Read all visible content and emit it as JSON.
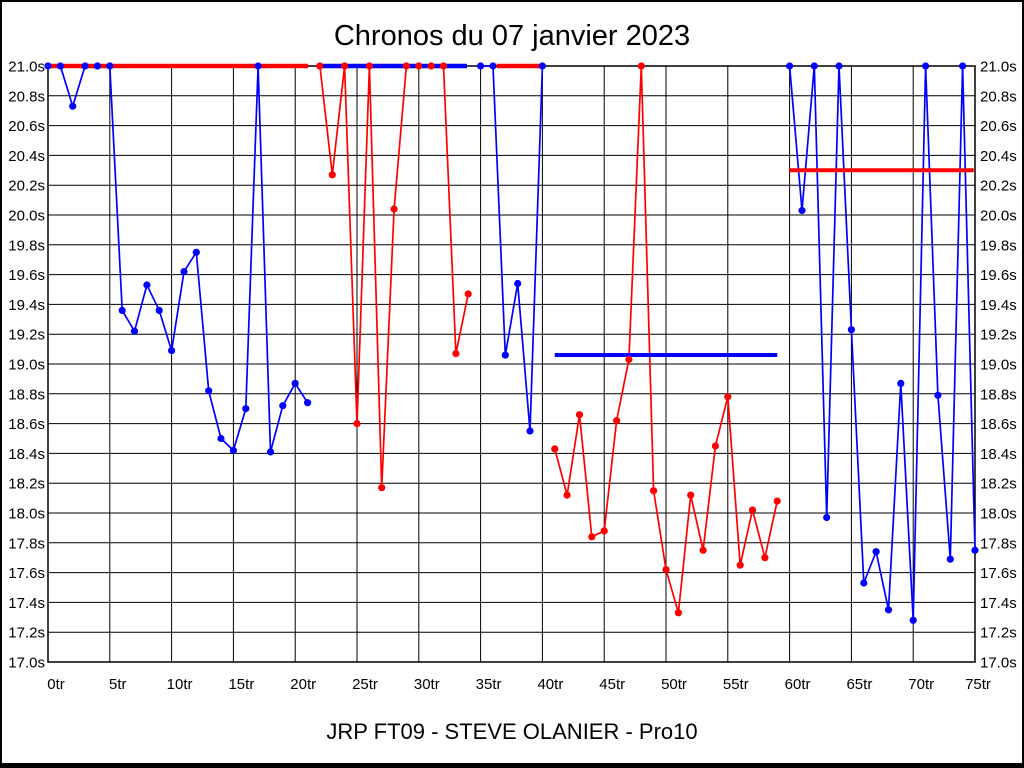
{
  "chart_data": {
    "type": "line",
    "title": "Chronos du 07 janvier 2023",
    "footer": "JRP FT09 - STEVE OLANIER - Pro10",
    "x_unit": "tr",
    "y_unit": "s",
    "xlim": [
      0,
      75
    ],
    "ylim": [
      17.0,
      21.0
    ],
    "grid": true,
    "x_ticks": [
      {
        "v": 0,
        "label": "0tr"
      },
      {
        "v": 5,
        "label": "5tr"
      },
      {
        "v": 10,
        "label": "10tr"
      },
      {
        "v": 15,
        "label": "15tr"
      },
      {
        "v": 20,
        "label": "20tr"
      },
      {
        "v": 25,
        "label": "25tr"
      },
      {
        "v": 30,
        "label": "30tr"
      },
      {
        "v": 35,
        "label": "35tr"
      },
      {
        "v": 40,
        "label": "40tr"
      },
      {
        "v": 45,
        "label": "45tr"
      },
      {
        "v": 50,
        "label": "50tr"
      },
      {
        "v": 55,
        "label": "55tr"
      },
      {
        "v": 60,
        "label": "60tr"
      },
      {
        "v": 65,
        "label": "65tr"
      },
      {
        "v": 70,
        "label": "70tr"
      },
      {
        "v": 75,
        "label": "75tr"
      }
    ],
    "y_ticks": [
      {
        "v": 21.0,
        "label": "21.0s"
      },
      {
        "v": 20.8,
        "label": "20.8s"
      },
      {
        "v": 20.6,
        "label": "20.6s"
      },
      {
        "v": 20.4,
        "label": "20.4s"
      },
      {
        "v": 20.2,
        "label": "20.2s"
      },
      {
        "v": 20.0,
        "label": "20.0s"
      },
      {
        "v": 19.8,
        "label": "19.8s"
      },
      {
        "v": 19.6,
        "label": "19.6s"
      },
      {
        "v": 19.4,
        "label": "19.4s"
      },
      {
        "v": 19.2,
        "label": "19.2s"
      },
      {
        "v": 19.0,
        "label": "19.0s"
      },
      {
        "v": 18.8,
        "label": "18.8s"
      },
      {
        "v": 18.6,
        "label": "18.6s"
      },
      {
        "v": 18.4,
        "label": "18.4s"
      },
      {
        "v": 18.2,
        "label": "18.2s"
      },
      {
        "v": 18.0,
        "label": "18.0s"
      },
      {
        "v": 17.8,
        "label": "17.8s"
      },
      {
        "v": 17.6,
        "label": "17.6s"
      },
      {
        "v": 17.4,
        "label": "17.4s"
      },
      {
        "v": 17.2,
        "label": "17.2s"
      },
      {
        "v": 17.0,
        "label": "17.0s"
      }
    ],
    "series": [
      {
        "name": "blue",
        "color": "#0000ff",
        "runs": [
          [
            [
              0,
              21.0
            ],
            [
              1,
              21.0
            ],
            [
              2,
              20.73
            ],
            [
              3,
              21.0
            ],
            [
              4,
              21.0
            ],
            [
              5,
              21.0
            ],
            [
              6,
              19.36
            ],
            [
              7,
              19.22
            ],
            [
              8,
              19.53
            ],
            [
              9,
              19.36
            ],
            [
              10,
              19.09
            ],
            [
              11,
              19.62
            ],
            [
              12,
              19.75
            ],
            [
              13,
              18.82
            ],
            [
              14,
              18.5
            ],
            [
              15,
              18.42
            ],
            [
              16,
              18.7
            ],
            [
              17,
              21.0
            ],
            [
              18,
              18.41
            ],
            [
              19,
              18.72
            ],
            [
              20,
              18.87
            ],
            [
              21,
              18.74
            ]
          ],
          [
            [
              35,
              21.0
            ],
            [
              36,
              21.0
            ],
            [
              37,
              19.06
            ],
            [
              38,
              19.54
            ],
            [
              39,
              18.55
            ],
            [
              40,
              21.0
            ]
          ],
          [
            [
              60,
              21.0
            ],
            [
              61,
              20.03
            ],
            [
              62,
              21.0
            ],
            [
              63,
              17.97
            ],
            [
              64,
              21.0
            ],
            [
              65,
              19.23
            ],
            [
              66,
              17.53
            ],
            [
              67,
              17.74
            ],
            [
              68,
              17.35
            ],
            [
              69,
              18.87
            ],
            [
              70,
              17.28
            ],
            [
              71,
              21.0
            ],
            [
              72,
              18.79
            ],
            [
              73,
              17.69
            ],
            [
              74,
              21.0
            ],
            [
              75,
              17.75
            ]
          ]
        ]
      },
      {
        "name": "red",
        "color": "#ff0000",
        "runs": [
          [
            [
              22,
              21.0
            ],
            [
              23,
              20.27
            ],
            [
              24,
              21.0
            ],
            [
              25,
              18.6
            ],
            [
              26,
              21.0
            ],
            [
              27,
              18.17
            ],
            [
              28,
              20.04
            ],
            [
              29,
              21.0
            ],
            [
              30,
              21.0
            ],
            [
              31,
              21.0
            ],
            [
              32,
              21.0
            ],
            [
              33,
              19.07
            ],
            [
              34,
              19.47
            ]
          ],
          [
            [
              41,
              18.43
            ],
            [
              42,
              18.12
            ],
            [
              43,
              18.66
            ],
            [
              44,
              17.84
            ],
            [
              45,
              17.88
            ],
            [
              46,
              18.62
            ],
            [
              47,
              19.03
            ],
            [
              48,
              21.0
            ],
            [
              49,
              18.15
            ],
            [
              50,
              17.62
            ],
            [
              51,
              17.33
            ],
            [
              52,
              18.12
            ],
            [
              53,
              17.75
            ],
            [
              54,
              18.45
            ],
            [
              55,
              18.78
            ],
            [
              56,
              17.65
            ],
            [
              57,
              18.02
            ],
            [
              58,
              17.7
            ],
            [
              59,
              18.08
            ]
          ]
        ]
      }
    ],
    "reference_lines": [
      {
        "color": "#ff0000",
        "y": 21.0,
        "x1": 0,
        "x2": 21.05,
        "width": 4.6
      },
      {
        "color": "#0000ff",
        "y": 21.0,
        "x1": 21.75,
        "x2": 33.9,
        "width": 4.6
      },
      {
        "color": "#ff0000",
        "y": 21.0,
        "x1": 36.3,
        "x2": 40.1,
        "width": 4.6
      },
      {
        "color": "#0000ff",
        "y": 19.06,
        "x1": 41.0,
        "x2": 59.0,
        "width": 4
      },
      {
        "color": "#ff0000",
        "y": 20.3,
        "x1": 59.95,
        "x2": 74.9,
        "width": 4
      }
    ],
    "legend": "none"
  },
  "colors": {
    "background": "#ffffff",
    "grid": "#000000",
    "border": "#000000",
    "blue_series": "#0000ff",
    "red_series": "#ff0000"
  }
}
